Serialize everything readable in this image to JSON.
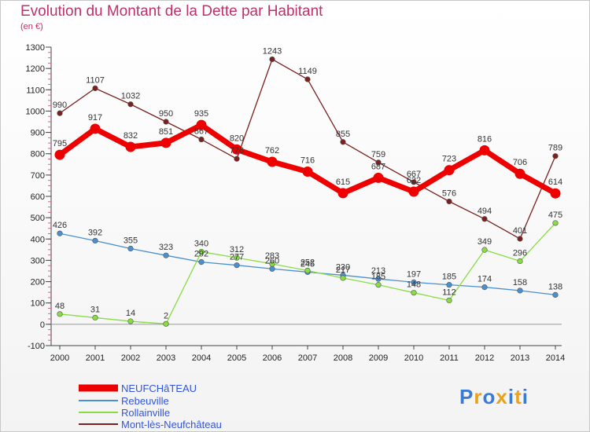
{
  "chart_data": {
    "type": "line",
    "title": "Evolution du Montant de la Dette par Habitant",
    "unit": "(en €)",
    "x": [
      "2000",
      "2001",
      "2002",
      "2003",
      "2004",
      "2005",
      "2006",
      "2007",
      "2008",
      "2009",
      "2010",
      "2011",
      "2012",
      "2013",
      "2014"
    ],
    "ylim": [
      -100,
      1300
    ],
    "yticks": [
      -100,
      0,
      100,
      200,
      300,
      400,
      500,
      600,
      700,
      800,
      900,
      1000,
      1100,
      1200,
      1300
    ],
    "grid": false,
    "legend_position": "bottom-left",
    "series": [
      {
        "name": "NEUFCHâTEAU",
        "color": "#ee0000",
        "values": [
          795,
          917,
          832,
          851,
          935,
          820,
          762,
          716,
          615,
          687,
          622,
          723,
          816,
          706,
          614
        ]
      },
      {
        "name": "Rebeuville",
        "color": "#4a90d0",
        "values": [
          426,
          392,
          355,
          323,
          292,
          277,
          260,
          245,
          230,
          213,
          197,
          185,
          174,
          158,
          138
        ]
      },
      {
        "name": "Rollainville",
        "color": "#88dd44",
        "values": [
          48,
          31,
          14,
          2,
          340,
          312,
          283,
          252,
          217,
          185,
          148,
          112,
          349,
          296,
          475
        ]
      },
      {
        "name": "Mont-lès-Neufchâteau",
        "color": "#7a2020",
        "values": [
          990,
          1107,
          1032,
          950,
          867,
          776,
          1243,
          1149,
          855,
          759,
          667,
          576,
          494,
          401,
          789
        ]
      }
    ]
  },
  "brand": {
    "text": "Proxiti"
  }
}
